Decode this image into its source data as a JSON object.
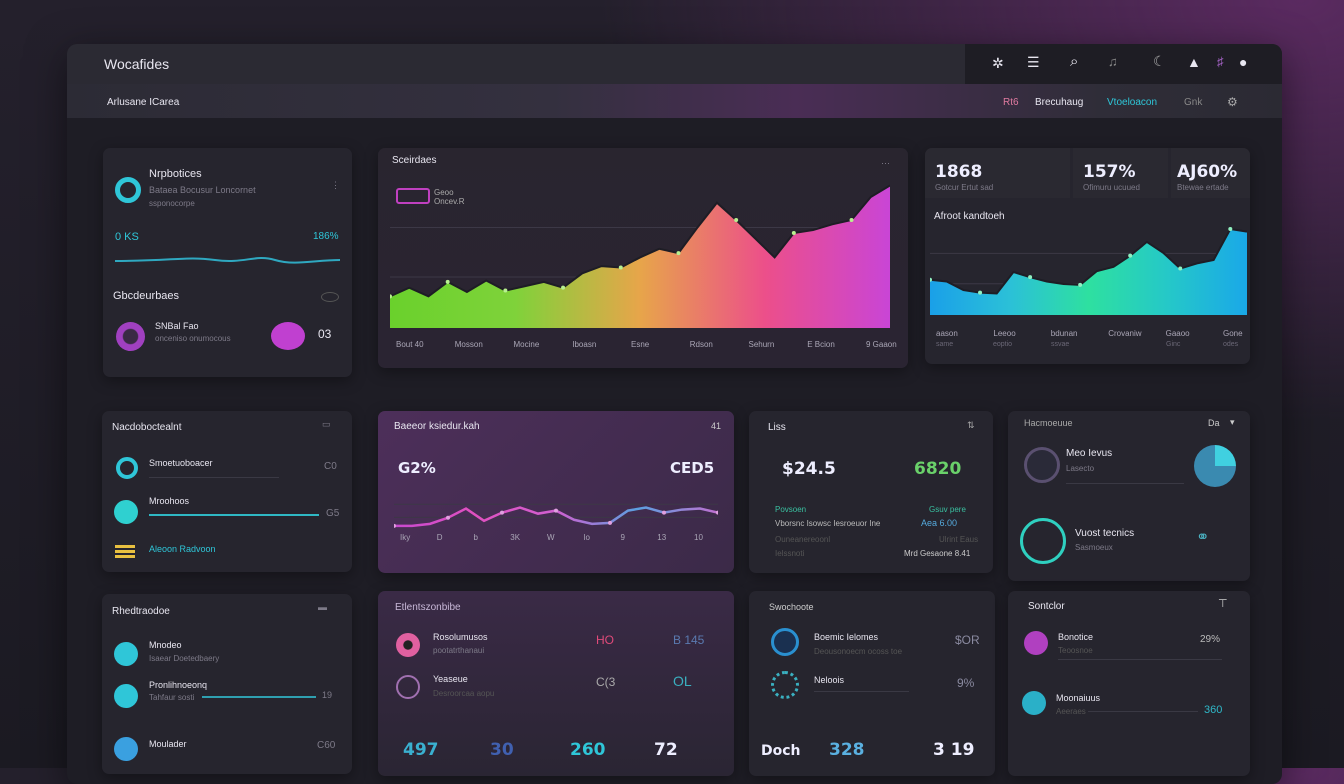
{
  "app": {
    "title": "Wocafides",
    "subtitle": "Arlusane ICarea"
  },
  "header": {
    "icons": [
      "puzzle-icon",
      "menu-icon",
      "search-icon",
      "mic-icon",
      "moon-icon",
      "user-icon",
      "filter-icon",
      "bell-icon"
    ]
  },
  "subnav": {
    "items": [
      "Rt6",
      "Brecuhaug",
      "Vtoeloacon",
      "Gnk"
    ],
    "active": "Vtoeloacon",
    "accent": "#2fc6d8"
  },
  "card_profile": {
    "title": "Nrpbotices",
    "line1": "Bataea Bocusur Loncornet",
    "line2": "ssponocorpe",
    "metric_left": "0 KS",
    "metric_right": "186%",
    "section": "Gbcdeurbaes",
    "item_title": "SNBal Fao",
    "item_sub": "onceniso onumocous",
    "item_value": "03"
  },
  "card_main_chart": {
    "title": "Sceirdaes",
    "legend_line1": "Geoo",
    "legend_line2": "Oncev.R"
  },
  "stats": [
    {
      "value": "1868",
      "label": "Gotcur Ertut sad"
    },
    {
      "value": "157%",
      "label": "Ofimuru ucuued"
    },
    {
      "value": "AJ60%",
      "label": "Btewae ertade"
    }
  ],
  "card_blue_chart": {
    "title": "Afroot kandtoeh",
    "sublabels": [
      "same",
      "eoptio",
      "ssvae",
      "",
      "Ginc",
      "odes"
    ]
  },
  "card_list1": {
    "title": "Nacdoboctealnt",
    "items": [
      {
        "label": "Smoetuoboacer",
        "value": "C0"
      },
      {
        "label": "Mroohoos",
        "value": "G5"
      },
      {
        "label": "Aleoon Radvoon",
        "value": ""
      }
    ]
  },
  "card_purple": {
    "title": "Baeeor ksiedur.kah",
    "left_value": "G2%",
    "right_value": "CED5",
    "corner": "41"
  },
  "card_metrics": {
    "title": "Liss",
    "value_left": "$24.5",
    "value_right": "6820",
    "label_left": "Povsoen",
    "label_right": "Gsuv pere",
    "rows": [
      {
        "label": "Vborsnc Isowsc Iesroeuor Ine",
        "value": "Aea 6.00"
      },
      {
        "label": "Ouneanereoonl",
        "value": "Ulrint Eaus"
      },
      {
        "label": "Ielssnoti",
        "value": "Mrd Gesaone 8.41"
      }
    ]
  },
  "card_status": {
    "title": "Hacmoeuue",
    "corner": "Da",
    "items": [
      {
        "label": "Meo Ievus",
        "sub": "Lasecto"
      },
      {
        "label": "Vuost tecnics",
        "sub": "Sasmoeux"
      }
    ]
  },
  "card_list2": {
    "title": "Rhedtraodoe",
    "items": [
      {
        "label": "Mnodeo",
        "sub": "Isaear Doetedbaery",
        "value": ""
      },
      {
        "label": "Pronlihnoeonq",
        "sub": "Tahfaur sosti",
        "value": "19"
      },
      {
        "label": "Moulader",
        "sub": "",
        "value": "C60"
      }
    ]
  },
  "card_list3": {
    "title": "Etlentszonbibe",
    "items": [
      {
        "label": "Rosolumusos",
        "sub": "pootatrthanaui",
        "v1": "HO",
        "v2": "B 145"
      },
      {
        "label": "Yeaseue",
        "sub": "Desroorcaa aopu",
        "v1": "C(3",
        "v2": "OL"
      }
    ],
    "totals": [
      "497",
      "30",
      "260",
      "72"
    ]
  },
  "card_list4": {
    "title": "Swochoote",
    "items": [
      {
        "label": "Boemic Ielomes",
        "sub": "Deousonoecm ocoss toe",
        "value": "$OR"
      },
      {
        "label": "Neloois",
        "sub": "",
        "value": "9%"
      }
    ],
    "totals": [
      "Doch",
      "328",
      "3 19"
    ]
  },
  "card_list5": {
    "title": "Sontclor",
    "items": [
      {
        "label": "Bonotice",
        "sub": "Teoosnoe",
        "value": "29%"
      },
      {
        "label": "Moonaiuus",
        "sub": "Aeeraes",
        "value": "360"
      }
    ]
  },
  "colors": {
    "green": "#6ad12c",
    "orange": "#e7a54a",
    "pink": "#ec4f8a",
    "magenta": "#c945d6",
    "cyan": "#2fc6d8",
    "blue": "#1aa0e8",
    "purple_card": "#4a2e57"
  },
  "chart_data": [
    {
      "type": "area",
      "values": [
        22,
        28,
        22,
        32,
        25,
        33,
        26,
        29,
        32,
        28,
        38,
        43,
        42,
        49,
        55,
        52,
        70,
        87,
        75,
        62,
        49,
        66,
        68,
        72,
        75,
        91,
        99
      ],
      "x_tick_labels": [
        "Bout 40",
        "Mosson",
        "Mocine",
        "Iboasn",
        "Esne",
        "Rdson",
        "Sehurn",
        "E Bcion",
        "9 Gaaon"
      ],
      "ylim": [
        0,
        100
      ],
      "fill": "horizontal gradient green-orange-pink-magenta",
      "grid": true
    },
    {
      "type": "area",
      "values": [
        41,
        39,
        29,
        26,
        25,
        50,
        44,
        39,
        36,
        35,
        51,
        56,
        69,
        85,
        72,
        54,
        60,
        64,
        100,
        97
      ],
      "x_tick_labels": [
        "aason",
        "Leeoo",
        "bdunan",
        "Crovaniw",
        "Gaaoo",
        "Gone"
      ],
      "ylim": [
        0,
        100
      ],
      "fill": "horizontal gradient blue-green-cyan",
      "grid": true
    },
    {
      "type": "line",
      "values": [
        15,
        15,
        21,
        39,
        66,
        30,
        54,
        69,
        51,
        60,
        33,
        21,
        24,
        60,
        69,
        54,
        63,
        66,
        54
      ],
      "x_tick_labels": [
        "Iky",
        "D",
        "b",
        "3K",
        "W",
        "lo",
        "9",
        "13",
        "10"
      ],
      "ylim": [
        0,
        100
      ],
      "grid": true
    }
  ]
}
